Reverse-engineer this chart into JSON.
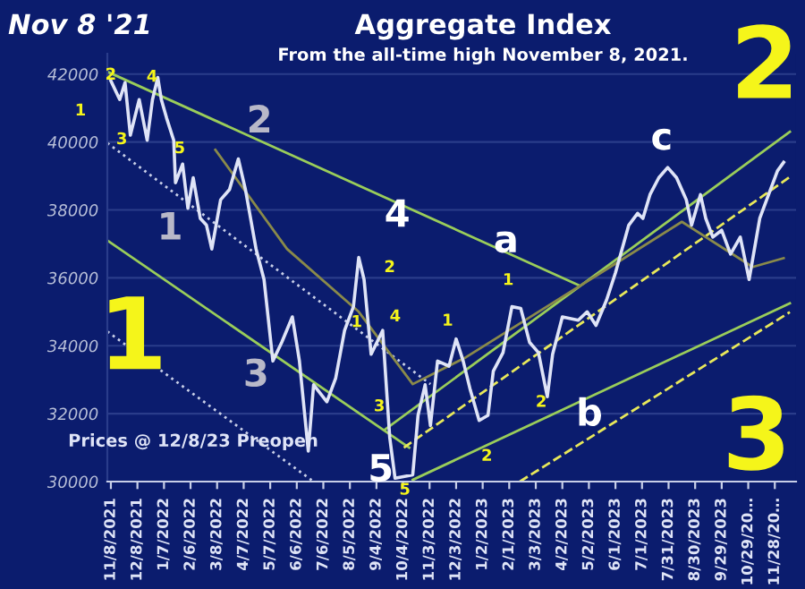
{
  "chart_data": {
    "type": "line",
    "title": "Aggregate Index",
    "subtitle": "From the all-time high November 8, 2021.",
    "xlim": [
      "2021-11-04",
      "2023-12-22"
    ],
    "ylim": [
      30000,
      42600
    ],
    "yticks": [
      30000,
      32000,
      34000,
      36000,
      38000,
      40000,
      42000
    ],
    "xticks": [
      {
        "value": "2021-11-08",
        "label": "11/8/2021"
      },
      {
        "value": "2021-12-08",
        "label": "12/8/2021"
      },
      {
        "value": "2022-01-07",
        "label": "1/7/2022"
      },
      {
        "value": "2022-02-06",
        "label": "2/6/2022"
      },
      {
        "value": "2022-03-08",
        "label": "3/8/2022"
      },
      {
        "value": "2022-04-07",
        "label": "4/7/2022"
      },
      {
        "value": "2022-05-07",
        "label": "5/7/2022"
      },
      {
        "value": "2022-06-06",
        "label": "6/6/2022"
      },
      {
        "value": "2022-07-06",
        "label": "7/6/2022"
      },
      {
        "value": "2022-08-05",
        "label": "8/5/2022"
      },
      {
        "value": "2022-09-04",
        "label": "9/4/2022"
      },
      {
        "value": "2022-10-04",
        "label": "10/4/2022"
      },
      {
        "value": "2022-11-03",
        "label": "11/3/2022"
      },
      {
        "value": "2022-12-03",
        "label": "12/3/2022"
      },
      {
        "value": "2023-01-02",
        "label": "1/2/2023"
      },
      {
        "value": "2023-02-01",
        "label": "2/1/2023"
      },
      {
        "value": "2023-03-03",
        "label": "3/3/2023"
      },
      {
        "value": "2023-04-02",
        "label": "4/2/2023"
      },
      {
        "value": "2023-05-02",
        "label": "5/2/2023"
      },
      {
        "value": "2023-06-01",
        "label": "6/1/2023"
      },
      {
        "value": "2023-07-01",
        "label": "7/1/2023"
      },
      {
        "value": "2023-07-31",
        "label": "7/31/2023"
      },
      {
        "value": "2023-08-30",
        "label": "8/30/2023"
      },
      {
        "value": "2023-09-29",
        "label": "9/29/2023"
      },
      {
        "value": "2023-10-29",
        "label": "10/29/20…"
      },
      {
        "value": "2023-11-28",
        "label": "11/28/20…"
      }
    ],
    "grid": "y",
    "marker": "none",
    "series": [
      {
        "color": "#dfe4f7",
        "line_style": "solid",
        "x": [
          "2021-11-08",
          "2021-11-18",
          "2021-11-24",
          "2021-11-30",
          "2021-12-10",
          "2021-12-19",
          "2021-12-25",
          "2021-12-31",
          "2022-01-04",
          "2022-01-10",
          "2022-01-18",
          "2022-01-20",
          "2022-01-28",
          "2022-02-03",
          "2022-02-09",
          "2022-02-17",
          "2022-02-24",
          "2022-03-02",
          "2022-03-12",
          "2022-03-22",
          "2022-04-01",
          "2022-04-09",
          "2022-04-21",
          "2022-04-30",
          "2022-05-10",
          "2022-05-20",
          "2022-06-01",
          "2022-06-09",
          "2022-06-19",
          "2022-06-25",
          "2022-07-10",
          "2022-07-20",
          "2022-07-30",
          "2022-08-09",
          "2022-08-15",
          "2022-08-21",
          "2022-08-29",
          "2022-09-11",
          "2022-09-19",
          "2022-09-25",
          "2022-10-15",
          "2022-10-21",
          "2022-10-29",
          "2022-11-04",
          "2022-11-12",
          "2022-11-25",
          "2022-12-03",
          "2022-12-11",
          "2022-12-19",
          "2022-12-29",
          "2023-01-08",
          "2023-01-14",
          "2023-01-25",
          "2023-02-04",
          "2023-02-14",
          "2023-02-24",
          "2023-03-06",
          "2023-03-16",
          "2023-03-22",
          "2023-04-02",
          "2023-04-20",
          "2023-04-30",
          "2023-05-10",
          "2023-05-22",
          "2023-06-01",
          "2023-06-16",
          "2023-06-26",
          "2023-07-02",
          "2023-07-10",
          "2023-07-20",
          "2023-07-30",
          "2023-08-09",
          "2023-08-20",
          "2023-08-26",
          "2023-09-05",
          "2023-09-11",
          "2023-09-19",
          "2023-09-29",
          "2023-10-09",
          "2023-10-20",
          "2023-10-30",
          "2023-11-05",
          "2023-11-11",
          "2023-11-21",
          "2023-12-01",
          "2023-12-08"
        ],
        "values": [
          41800,
          41250,
          41750,
          40200,
          41250,
          40050,
          41250,
          41900,
          41250,
          40700,
          40050,
          38800,
          39350,
          38050,
          38950,
          37750,
          37550,
          36850,
          38300,
          38600,
          39500,
          38600,
          36850,
          35950,
          33550,
          34100,
          34850,
          33550,
          30900,
          32850,
          32350,
          33050,
          34450,
          35150,
          36600,
          35950,
          33750,
          34450,
          31300,
          30100,
          30200,
          31950,
          32850,
          31650,
          33550,
          33400,
          34200,
          33550,
          32700,
          31800,
          31950,
          33250,
          33800,
          35150,
          35100,
          34100,
          33800,
          32500,
          33750,
          34850,
          34750,
          35000,
          34600,
          35350,
          36150,
          37550,
          37900,
          37750,
          38450,
          38950,
          39250,
          38950,
          38300,
          37550,
          38450,
          37750,
          37200,
          37400,
          36700,
          37200,
          35950,
          36850,
          37750,
          38450,
          39150,
          39400
        ]
      },
      {
        "color": "#9acd5a",
        "line_style": "solid",
        "x": [
          "2021-11-04",
          "2023-04-20"
        ],
        "values": [
          42070,
          35790
        ]
      },
      {
        "color": "#c8cfe8",
        "line_style": "dotted",
        "x": [
          "2021-11-04",
          "2022-11-04"
        ],
        "values": [
          39970,
          32870
        ]
      },
      {
        "color": "#9acd5a",
        "line_style": "solid",
        "x": [
          "2021-11-04",
          "2022-10-11"
        ],
        "values": [
          37100,
          31000
        ]
      },
      {
        "color": "#c8cfe8",
        "line_style": "dotted",
        "x": [
          "2021-11-04",
          "2022-06-25"
        ],
        "values": [
          34420,
          30000
        ]
      },
      {
        "color": "#9acd5a",
        "line_style": "solid",
        "x": [
          "2022-09-14",
          "2023-12-15"
        ],
        "values": [
          31540,
          40300
        ]
      },
      {
        "color": "#e8e85a",
        "line_style": "dashed",
        "x": [
          "2022-10-05",
          "2023-12-15"
        ],
        "values": [
          31000,
          38970
        ]
      },
      {
        "color": "#9acd5a",
        "line_style": "solid",
        "x": [
          "2022-10-15",
          "2023-12-15"
        ],
        "values": [
          30050,
          35250
        ]
      },
      {
        "color": "#e8e85a",
        "line_style": "dashed",
        "x": [
          "2023-02-13",
          "2023-12-15"
        ],
        "values": [
          30000,
          34990
        ]
      },
      {
        "color": "#8a8a4a",
        "line_style": "solid",
        "x": [
          "2022-03-06",
          "2022-05-26",
          "2022-08-15",
          "2022-10-15",
          "2022-12-14",
          "2023-03-06",
          "2023-05-26",
          "2023-08-15",
          "2023-11-03",
          "2023-12-08"
        ],
        "values": [
          39770,
          36850,
          35000,
          32870,
          33660,
          35000,
          36320,
          37650,
          36320,
          36580
        ]
      }
    ],
    "annotations": [
      "Nov 8 '21",
      "1",
      "2",
      "3",
      "Prices @ 12/8/23 Preopen",
      "2",
      "1",
      "3",
      "4",
      "5",
      "2",
      "1",
      "4",
      "3",
      "5",
      "1",
      "1",
      "2",
      "2",
      "2",
      "1",
      "3",
      "4",
      "5",
      "a",
      "b",
      "c"
    ]
  }
}
